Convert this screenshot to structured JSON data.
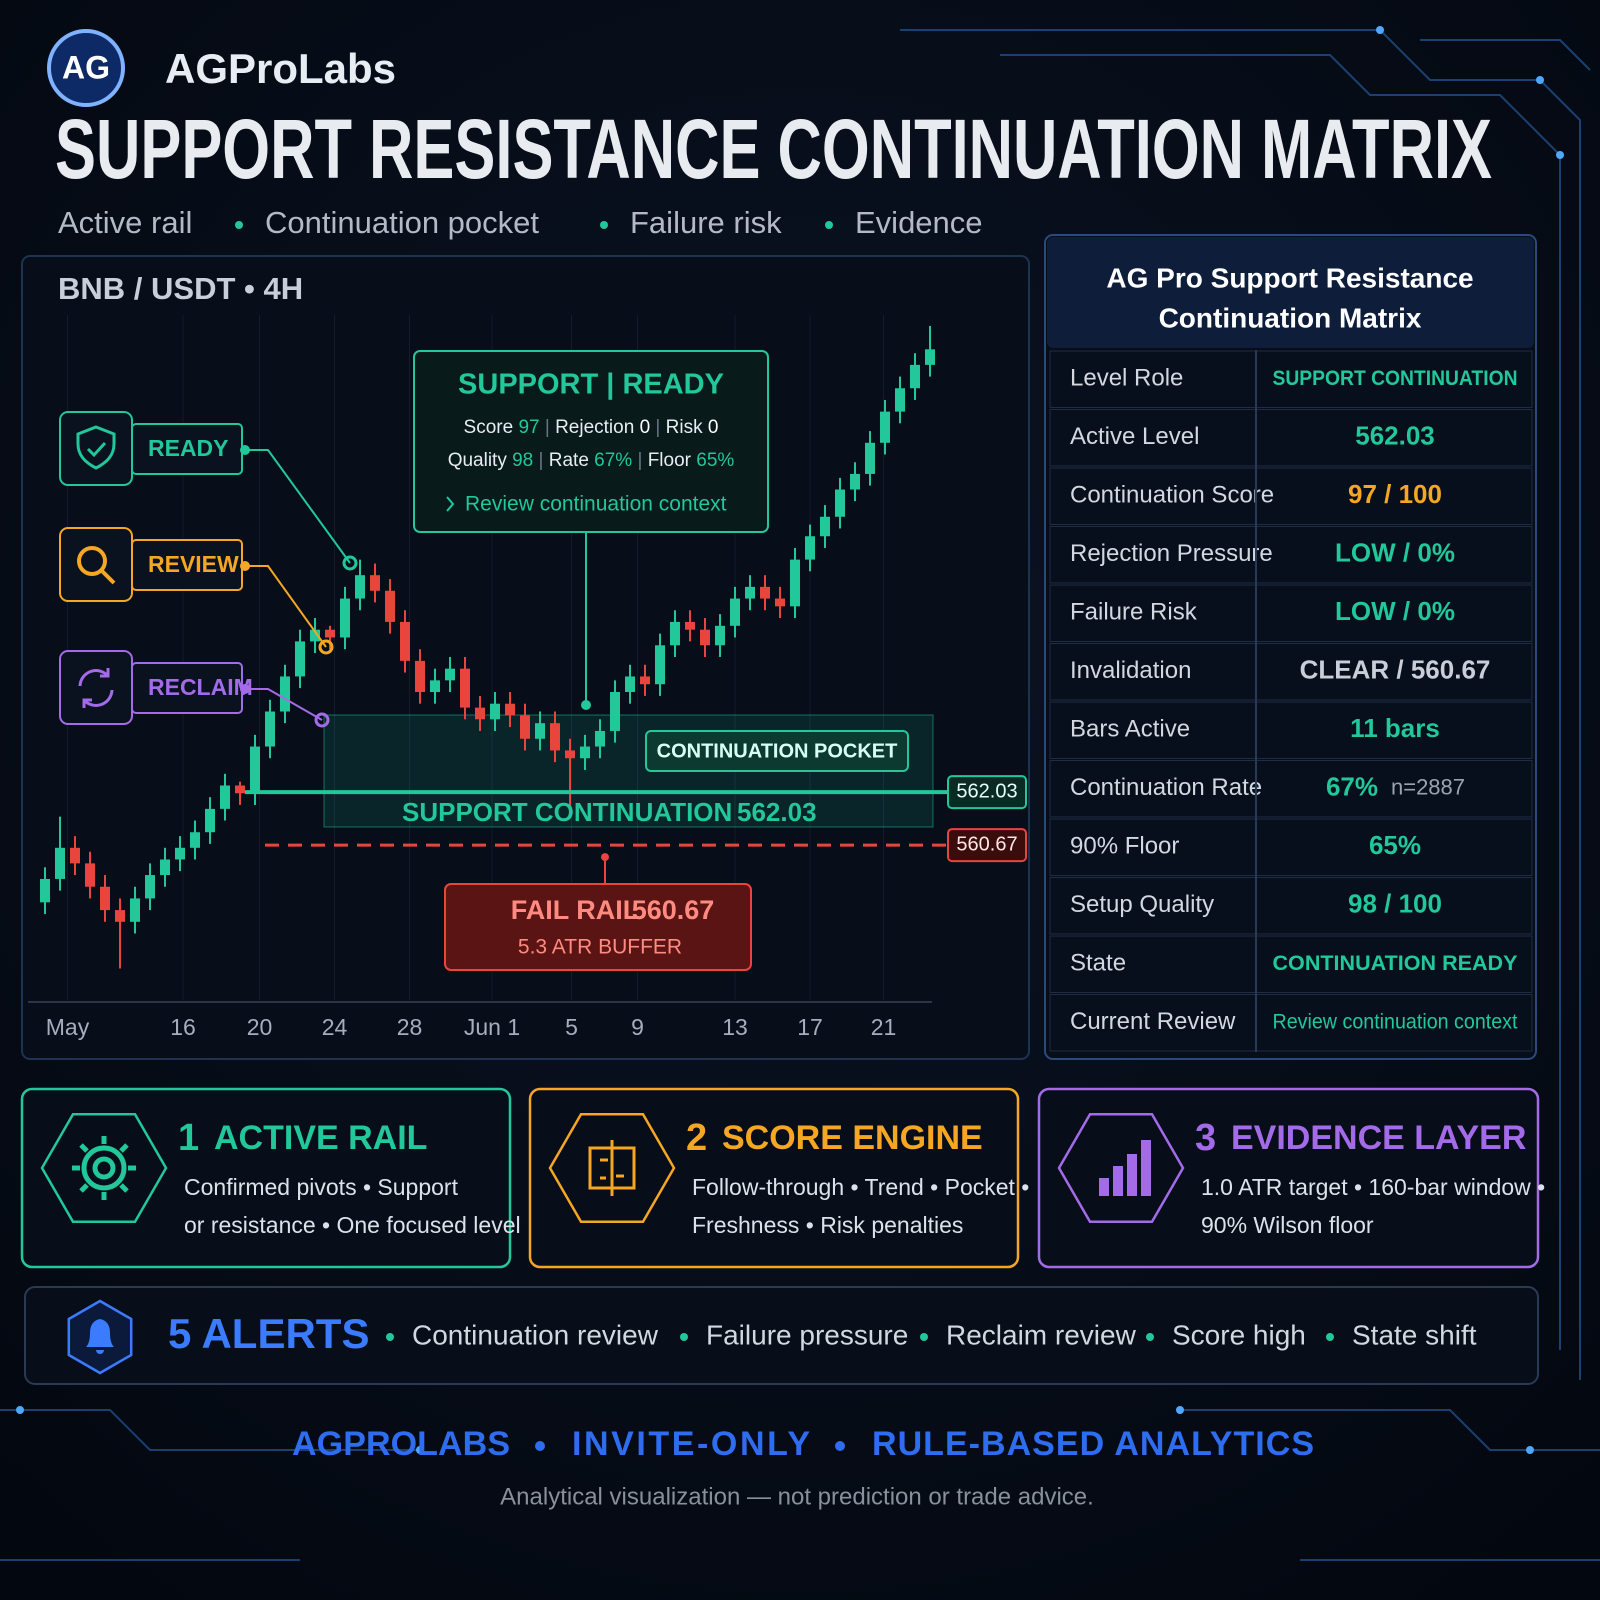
{
  "header": {
    "logo": "AG",
    "brand": "AGProLabs",
    "title": "SUPPORT RESISTANCE CONTINUATION MATRIX",
    "tags": [
      "Active rail",
      "Continuation pocket",
      "Failure risk",
      "Evidence"
    ]
  },
  "chart_data": {
    "type": "candlestick",
    "title": "BNB / USDT • 4H",
    "up_color": "#22c79a",
    "down_color": "#e8453c",
    "xlim": [
      0,
      59
    ],
    "ylim": [
      557,
      575
    ],
    "xticks": [
      {
        "value": 1.5,
        "label": "May"
      },
      {
        "value": 9.2,
        "label": "16"
      },
      {
        "value": 14.3,
        "label": "20"
      },
      {
        "value": 19.3,
        "label": "24"
      },
      {
        "value": 24.3,
        "label": "28"
      },
      {
        "value": 29.8,
        "label": "Jun 1"
      },
      {
        "value": 35.1,
        "label": "5"
      },
      {
        "value": 39.5,
        "label": "9"
      },
      {
        "value": 46,
        "label": "13"
      },
      {
        "value": 51,
        "label": "17"
      },
      {
        "value": 55.9,
        "label": "21"
      }
    ],
    "open": [
      559.2,
      559.8,
      560.6,
      560.2,
      559.6,
      559.0,
      558.7,
      559.3,
      559.9,
      560.3,
      560.6,
      561.0,
      561.6,
      562.2,
      562.0,
      563.2,
      564.1,
      565.0,
      565.9,
      566.2,
      566.0,
      567.0,
      567.6,
      567.2,
      566.4,
      565.4,
      564.6,
      564.9,
      565.2,
      564.2,
      563.9,
      564.3,
      564.0,
      563.4,
      563.8,
      563.1,
      562.9,
      563.2,
      563.6,
      564.6,
      565.0,
      564.8,
      565.8,
      566.4,
      566.2,
      565.8,
      566.3,
      567.0,
      567.3,
      567.0,
      566.8,
      568.0,
      568.6,
      569.1,
      569.8,
      570.2,
      571.0,
      571.8,
      572.4,
      573.0
    ],
    "close": [
      559.8,
      560.6,
      560.2,
      559.6,
      559.0,
      558.7,
      559.3,
      559.9,
      560.3,
      560.6,
      561.0,
      561.6,
      562.2,
      562.0,
      563.2,
      564.1,
      565.0,
      565.9,
      566.2,
      566.0,
      567.0,
      567.6,
      567.2,
      566.4,
      565.4,
      564.6,
      564.9,
      565.2,
      564.2,
      563.9,
      564.3,
      564.0,
      563.4,
      563.8,
      563.1,
      562.9,
      563.2,
      563.6,
      564.6,
      565.0,
      564.8,
      565.8,
      566.4,
      566.2,
      565.8,
      566.3,
      567.0,
      567.3,
      567.0,
      566.8,
      568.0,
      568.6,
      569.1,
      569.8,
      570.2,
      571.0,
      571.8,
      572.4,
      573.0,
      573.4
    ],
    "high": [
      560.1,
      561.4,
      560.9,
      560.5,
      559.9,
      559.3,
      559.6,
      560.2,
      560.6,
      560.9,
      561.3,
      561.9,
      562.5,
      562.3,
      563.5,
      564.4,
      565.3,
      566.2,
      566.5,
      566.3,
      567.3,
      568.0,
      567.9,
      567.5,
      566.7,
      565.7,
      565.2,
      565.5,
      565.5,
      564.5,
      564.6,
      564.6,
      564.3,
      564.1,
      564.1,
      563.4,
      563.5,
      563.9,
      564.9,
      565.3,
      565.3,
      566.1,
      566.7,
      566.7,
      566.5,
      566.6,
      567.3,
      567.6,
      567.6,
      567.3,
      568.3,
      568.9,
      569.4,
      570.1,
      570.5,
      571.3,
      572.1,
      572.7,
      573.3,
      574.0
    ],
    "low": [
      558.9,
      559.5,
      559.9,
      559.3,
      558.7,
      557.5,
      558.4,
      559.0,
      559.6,
      560.0,
      560.3,
      560.7,
      561.3,
      561.7,
      561.7,
      562.9,
      563.8,
      564.7,
      565.6,
      565.7,
      565.7,
      566.7,
      566.9,
      566.1,
      565.1,
      564.3,
      564.3,
      564.6,
      563.9,
      563.6,
      563.6,
      563.7,
      563.1,
      563.1,
      562.8,
      561.6,
      562.6,
      562.9,
      563.3,
      564.3,
      564.5,
      564.5,
      565.5,
      565.9,
      565.5,
      565.5,
      566.0,
      566.7,
      566.7,
      566.5,
      566.5,
      567.7,
      568.3,
      568.8,
      569.5,
      569.9,
      570.7,
      571.5,
      572.1,
      572.7
    ],
    "support": {
      "label": "SUPPORT CONTINUATION",
      "value": 562.03,
      "color": "#22c79a"
    },
    "fail": {
      "label": "FAIL RAIL",
      "value": 560.67,
      "note": "5.3 ATR BUFFER",
      "color": "#e8453c"
    },
    "pocket_label": "CONTINUATION POCKET",
    "callout": {
      "title": "SUPPORT | READY",
      "lines": [
        [
          {
            "label": "Score",
            "value": 97,
            "color": "#22c79a"
          },
          {
            "label": "Rejection",
            "value": 0,
            "color": "#ffffff"
          },
          {
            "label": "Risk",
            "value": 0,
            "color": "#ffffff"
          }
        ],
        [
          {
            "label": "Quality",
            "value": 98,
            "color": "#22c79a"
          },
          {
            "label": "Rate",
            "value": "67%",
            "color": "#22c79a"
          },
          {
            "label": "Floor",
            "value": "65%",
            "color": "#22c79a"
          }
        ]
      ],
      "link": "Review continuation context"
    },
    "badges": [
      {
        "label": "READY",
        "color": "#22c79a"
      },
      {
        "label": "REVIEW",
        "color": "#f5a623"
      },
      {
        "label": "RECLAIM",
        "color": "#a46be8"
      }
    ]
  },
  "panel": {
    "title_lines": [
      "AG Pro Support Resistance",
      "Continuation Matrix"
    ],
    "rows": [
      {
        "label": "Level Role",
        "value": "SUPPORT CONTINUATION",
        "color": "#22c79a"
      },
      {
        "label": "Active Level",
        "value": "562.03",
        "color": "#22c79a"
      },
      {
        "label": "Continuation Score",
        "value": "97 / 100",
        "color": "#f5a623"
      },
      {
        "label": "Rejection Pressure",
        "value": "LOW / 0%",
        "color": "#22c79a"
      },
      {
        "label": "Failure Risk",
        "value": "LOW / 0%",
        "color": "#22c79a"
      },
      {
        "label": "Invalidation",
        "value": "CLEAR / 560.67",
        "color": "#c9ced8"
      },
      {
        "label": "Bars Active",
        "value": "11 bars",
        "color": "#22c79a"
      },
      {
        "label": "Continuation Rate",
        "value": "67%",
        "note": "n=2887",
        "color": "#22c79a"
      },
      {
        "label": "90% Floor",
        "value": "65%",
        "color": "#22c79a"
      },
      {
        "label": "Setup Quality",
        "value": "98 / 100",
        "color": "#22c79a"
      },
      {
        "label": "State",
        "value": "CONTINUATION READY",
        "color": "#22c79a"
      },
      {
        "label": "Current Review",
        "value": "Review continuation context",
        "color": "#22c79a"
      }
    ]
  },
  "cards": [
    {
      "number": 1,
      "title": "ACTIVE RAIL",
      "color": "#22c79a",
      "lines": [
        "Confirmed pivots • Support",
        "or resistance • One focused level"
      ]
    },
    {
      "number": 2,
      "title": "SCORE ENGINE",
      "color": "#f5a623",
      "lines": [
        "Follow-through • Trend • Pocket •",
        "Freshness • Risk penalties"
      ]
    },
    {
      "number": 3,
      "title": "EVIDENCE LAYER",
      "color": "#a46be8",
      "lines": [
        "1.0 ATR target • 160-bar window •",
        "90% Wilson floor"
      ]
    }
  ],
  "alerts": {
    "title": "5 ALERTS",
    "items": [
      "Continuation review",
      "Failure pressure",
      "Reclaim review",
      "Score high",
      "State shift"
    ]
  },
  "footer": {
    "tagline": [
      "AGPROLABS",
      "INVITE-ONLY",
      "RULE-BASED ANALYTICS"
    ],
    "disclaimer": "Analytical visualization — not prediction or trade advice."
  }
}
